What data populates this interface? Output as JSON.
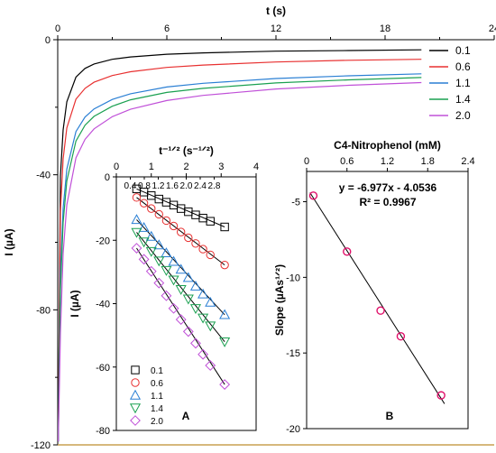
{
  "chart_data": [
    {
      "type": "line",
      "xlabel": "t (s)",
      "ylabel": "I (µA)",
      "xlim": [
        0,
        24
      ],
      "ylim": [
        -120,
        0
      ],
      "x_ticks": [
        "0",
        "6",
        "12",
        "18",
        "24"
      ],
      "y_ticks": [
        "0",
        "-40",
        "-80",
        "-120"
      ],
      "x_axis_position": "top",
      "legend_position": "top-right",
      "series": [
        {
          "name": "0.1",
          "color": "#000000",
          "x": [
            0.15,
            0.3,
            0.5,
            1,
            1.5,
            2,
            3,
            4,
            6,
            8,
            12,
            16,
            20
          ],
          "y": [
            -40.4,
            -26.7,
            -18.4,
            -11.1,
            -8.5,
            -7.2,
            -5.8,
            -5.1,
            -4.3,
            -3.9,
            -3.4,
            -3.2,
            -3.0
          ]
        },
        {
          "name": "0.6",
          "color": "#e83030",
          "x": [
            0.15,
            0.3,
            0.5,
            1,
            1.5,
            2,
            3,
            4,
            6,
            8,
            12,
            16,
            20
          ],
          "y": [
            -50.8,
            -35.3,
            -26.1,
            -17.6,
            -14.4,
            -12.6,
            -10.6,
            -9.5,
            -8.2,
            -7.5,
            -6.6,
            -6.1,
            -5.8
          ]
        },
        {
          "name": "1.1",
          "color": "#2a7fd4",
          "x": [
            0.15,
            0.3,
            0.5,
            1,
            1.5,
            2,
            3,
            4,
            6,
            8,
            12,
            16,
            20
          ],
          "y": [
            -69.0,
            -49.9,
            -38.3,
            -27.2,
            -22.9,
            -20.5,
            -17.7,
            -16.0,
            -14.0,
            -12.9,
            -11.5,
            -10.7,
            -10.1
          ]
        },
        {
          "name": "1.4",
          "color": "#1aa050",
          "x": [
            0.15,
            0.3,
            0.5,
            1,
            1.5,
            2,
            3,
            4,
            6,
            8,
            12,
            16,
            20
          ],
          "y": [
            -74.4,
            -54.1,
            -41.8,
            -30.0,
            -25.3,
            -22.7,
            -19.7,
            -17.8,
            -15.6,
            -14.4,
            -12.8,
            -11.9,
            -11.2
          ]
        },
        {
          "name": "2.0",
          "color": "#c050d8",
          "x": [
            0.15,
            0.3,
            0.5,
            1,
            1.5,
            2,
            3,
            4,
            6,
            8,
            12,
            16,
            20
          ],
          "y": [
            -86.9,
            -63.3,
            -48.9,
            -35.0,
            -29.5,
            -26.4,
            -22.8,
            -20.6,
            -18.0,
            -16.5,
            -14.6,
            -13.5,
            -12.7
          ]
        }
      ]
    },
    {
      "type": "scatter",
      "panel_label": "A",
      "xlabel": "t⁻¹ᐟ² (s⁻¹ᐟ²)",
      "ylabel": "I (µA)",
      "xlim": [
        0,
        4
      ],
      "ylim": [
        -80,
        0
      ],
      "x_ticks": [
        "0",
        "1",
        "2",
        "3",
        "4"
      ],
      "y_ticks": [
        "0",
        "-20",
        "-40",
        "-60",
        "-80"
      ],
      "minor_x_ticks": [
        "0.4",
        "0.8",
        "1.2",
        "1.6",
        "2.0",
        "2.4",
        "2.8"
      ],
      "legend_position": "bottom-left",
      "series": [
        {
          "name": "0.1",
          "marker": "square",
          "color": "#000000",
          "x": [
            0.58,
            0.79,
            1.0,
            1.22,
            1.43,
            1.64,
            1.85,
            2.06,
            2.27,
            2.48,
            2.69,
            3.1
          ],
          "y": [
            -3.8,
            -4.8,
            -5.9,
            -7.0,
            -8.0,
            -8.9,
            -10.0,
            -11.0,
            -12.0,
            -13.0,
            -14.0,
            -15.8
          ]
        },
        {
          "name": "0.6",
          "marker": "circle",
          "color": "#e83030",
          "x": [
            0.58,
            0.79,
            1.0,
            1.22,
            1.43,
            1.64,
            1.85,
            2.06,
            2.27,
            2.48,
            2.69,
            3.1
          ],
          "y": [
            -6.5,
            -8.3,
            -10.0,
            -11.8,
            -13.8,
            -15.5,
            -17.4,
            -19.2,
            -21.0,
            -22.8,
            -24.6,
            -27.8
          ]
        },
        {
          "name": "1.1",
          "marker": "triangle-up",
          "color": "#2a7fd4",
          "x": [
            0.58,
            0.79,
            1.0,
            1.22,
            1.43,
            1.64,
            1.85,
            2.06,
            2.27,
            2.48,
            2.69,
            3.1
          ],
          "y": [
            -13.5,
            -16.0,
            -18.8,
            -21.5,
            -24.0,
            -26.7,
            -29.2,
            -31.8,
            -34.5,
            -37.0,
            -39.6,
            -43.5
          ]
        },
        {
          "name": "1.4",
          "marker": "triangle-down",
          "color": "#1aa050",
          "x": [
            0.58,
            0.79,
            1.0,
            1.22,
            1.43,
            1.64,
            1.85,
            2.06,
            2.27,
            2.48,
            2.69,
            3.1
          ],
          "y": [
            -17.5,
            -20.5,
            -23.5,
            -26.5,
            -29.5,
            -32.5,
            -35.5,
            -38.5,
            -41.5,
            -44.5,
            -47.0,
            -52.0
          ]
        },
        {
          "name": "2.0",
          "marker": "diamond",
          "color": "#c050d8",
          "x": [
            0.58,
            0.79,
            1.0,
            1.22,
            1.43,
            1.64,
            1.85,
            2.06,
            2.27,
            2.48,
            2.69,
            3.1
          ],
          "y": [
            -22.5,
            -26.0,
            -29.8,
            -33.5,
            -37.5,
            -41.5,
            -45.0,
            -48.8,
            -52.5,
            -56.0,
            -59.5,
            -65.5
          ]
        }
      ]
    },
    {
      "type": "scatter",
      "panel_label": "B",
      "xlabel": "C4-Nitrophenol (mM)",
      "ylabel": "Slope (µAs¹ᐟ²)",
      "xlim": [
        0,
        2.4
      ],
      "ylim": [
        -20,
        -3
      ],
      "x_ticks": [
        "0",
        "0.6",
        "1.2",
        "1.8",
        "2.4"
      ],
      "y_ticks": [
        "-5",
        "-10",
        "-15",
        "-20"
      ],
      "x_axis_position": "top",
      "x": [
        0.1,
        0.6,
        1.1,
        1.4,
        2.0
      ],
      "y": [
        -4.6,
        -8.3,
        -12.2,
        -13.9,
        -17.8
      ],
      "marker_color": "#e0106a",
      "fit": {
        "slope": -6.977,
        "intercept": -4.0536
      },
      "equation": "y = -6.977x - 4.0536",
      "r2_label": "R² = 0.9967"
    }
  ]
}
